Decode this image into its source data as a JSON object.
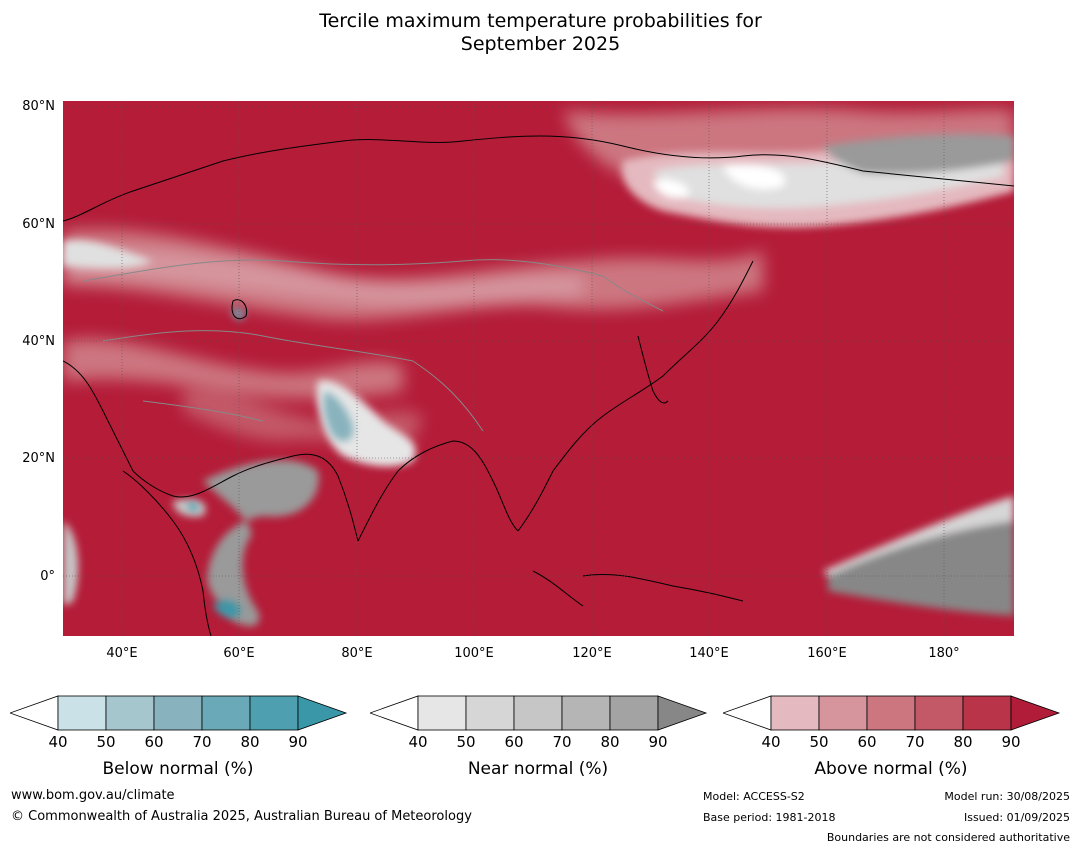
{
  "title_line1": "Tercile maximum temperature probabilities for",
  "title_line2": "September 2025",
  "latitude_labels": [
    "80°N",
    "60°N",
    "40°N",
    "20°N",
    "0°"
  ],
  "longitude_labels": [
    "40°E",
    "60°E",
    "80°E",
    "100°E",
    "120°E",
    "140°E",
    "160°E",
    "180°"
  ],
  "colorbars": [
    {
      "name": "below",
      "title": "Below normal (%)",
      "ticks": [
        "40",
        "50",
        "60",
        "70",
        "80",
        "90"
      ],
      "colors": [
        "#c9e1e7",
        "#a6c6cd",
        "#88b2bd",
        "#6aa9b7",
        "#4ea0b0",
        "#3a97a8"
      ]
    },
    {
      "name": "near",
      "title": "Near normal (%)",
      "ticks": [
        "40",
        "50",
        "60",
        "70",
        "80",
        "90"
      ],
      "colors": [
        "#e6e6e6",
        "#d6d6d6",
        "#c6c6c6",
        "#b5b5b5",
        "#a3a3a3",
        "#878787"
      ]
    },
    {
      "name": "above",
      "title": "Above normal (%)",
      "ticks": [
        "40",
        "50",
        "60",
        "70",
        "80",
        "90"
      ],
      "colors": [
        "#e4b9bf",
        "#d6959d",
        "#cc7680",
        "#c35867",
        "#b93449",
        "#b11c38"
      ]
    }
  ],
  "colors": {
    "dominant_above": "#b41c38",
    "near_mid": "#9a9a9a",
    "land_outline": "#000000",
    "border": "#888888"
  },
  "footer": {
    "website": "www.bom.gov.au/climate",
    "copyright": "© Commonwealth of Australia 2025, Australian Bureau of Meteorology",
    "model": "Model: ACCESS-S2",
    "base_period": "Base period: 1981-2018",
    "model_run": "Model run: 30/08/2025",
    "issued": "Issued: 01/09/2025",
    "disclaimer": "Boundaries are not considered authoritative"
  }
}
